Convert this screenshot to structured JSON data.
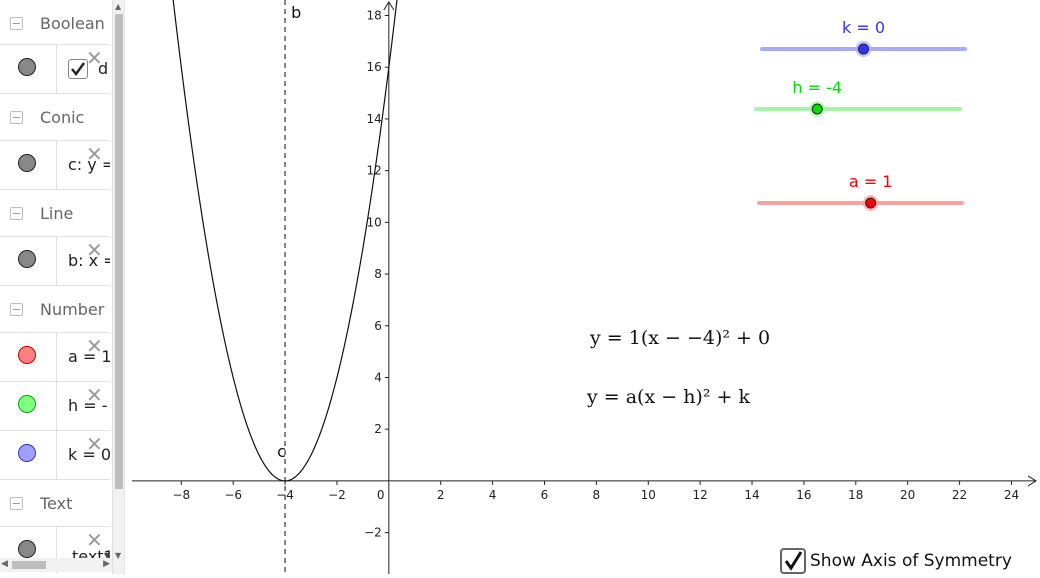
{
  "algebra_panel": {
    "groups": [
      {
        "label": "Boolean",
        "items": [
          {
            "kind": "checkbox",
            "text": "d",
            "color": "#888888"
          }
        ]
      },
      {
        "label": "Conic",
        "items": [
          {
            "kind": "value",
            "text": "c: y =",
            "color": "#888888"
          }
        ]
      },
      {
        "label": "Line",
        "items": [
          {
            "kind": "value",
            "text": "b: x =",
            "color": "#888888"
          }
        ]
      },
      {
        "label": "Number",
        "items": [
          {
            "kind": "value",
            "text": "a = 1",
            "color": "#ff8080"
          },
          {
            "kind": "value",
            "text": "h = -",
            "color": "#80ff80"
          },
          {
            "kind": "value",
            "text": "k = 0",
            "color": "#8080ff"
          }
        ]
      },
      {
        "label": "Text",
        "items": [
          {
            "kind": "dropdown",
            "text": "text1",
            "color": "#888888"
          }
        ]
      }
    ]
  },
  "graphics": {
    "x_axis": {
      "ticks": [
        "−8",
        "−6",
        "−4",
        "−2",
        "0",
        "2",
        "4",
        "6",
        "8",
        "10",
        "12",
        "14",
        "16",
        "18",
        "20",
        "22",
        "24"
      ],
      "range": [
        -9.9,
        25.1
      ]
    },
    "y_axis": {
      "ticks": [
        "−2",
        "2",
        "4",
        "6",
        "8",
        "10",
        "12",
        "14",
        "16",
        "18"
      ],
      "range": [
        -3.6,
        18.6
      ]
    },
    "line_label": "b",
    "conic_label": "c",
    "parabola": {
      "a": 1,
      "h": -4,
      "k": 0
    },
    "axis_of_symmetry_x": -4,
    "sliders": [
      {
        "label": "k = 0",
        "color": "#3333ff",
        "track_color": "#a9a9ff",
        "value": 0,
        "min": -10,
        "max": 10
      },
      {
        "label": "h = -4",
        "color": "#00dd00",
        "track_color": "#a6f5a6",
        "value": -4,
        "min": -10,
        "max": 10
      },
      {
        "label": "a = 1",
        "color": "#ff0000",
        "track_color": "#ff9f9f",
        "value": 1,
        "min": -10,
        "max": 10
      }
    ],
    "equation_specific": "y = 1(x − −4)² + 0",
    "equation_general": "y = a(x − h)² + k",
    "checkbox": {
      "label": "Show Axis of Symmetry",
      "checked": true
    }
  }
}
